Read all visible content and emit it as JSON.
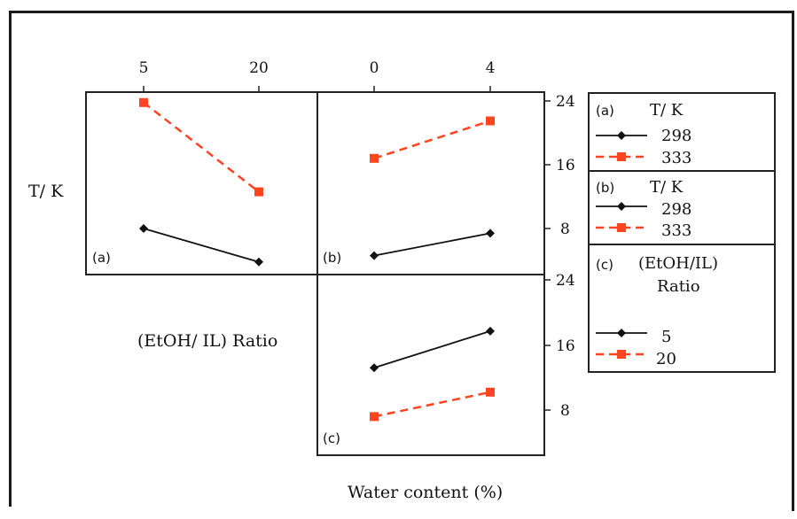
{
  "figure": {
    "top_axis_a": {
      "ticks": [
        "5",
        "20"
      ]
    },
    "top_axis_b": {
      "ticks": [
        "0",
        "4"
      ]
    },
    "y_axis_label": "T/ K",
    "middle_label": "(EtOH/ IL) Ratio",
    "x_axis_label": "Water content (%)",
    "right_ticks_upper": [
      "24",
      "16",
      "8"
    ],
    "right_ticks_lower": [
      "24",
      "16",
      "8"
    ],
    "colors": {
      "series_298": "#111111",
      "series_333": "#ff4422",
      "series_5": "#111111",
      "series_20": "#ff4422"
    }
  },
  "legend": {
    "a": {
      "tag": "(a)",
      "title": "T/ K",
      "entries": [
        "298",
        "333"
      ]
    },
    "b": {
      "tag": "(b)",
      "title": "T/ K",
      "entries": [
        "298",
        "333"
      ]
    },
    "c": {
      "tag": "(c)",
      "title_line1": "(EtOH/IL)",
      "title_line2": "Ratio",
      "entries": [
        "5",
        "20"
      ]
    }
  },
  "chart_data": [
    {
      "panel": "(a)",
      "type": "line",
      "x": [
        5,
        20
      ],
      "ylim": [
        3,
        24
      ],
      "series": [
        {
          "name": "298",
          "style": "solid",
          "values": [
            8.0,
            3.8
          ]
        },
        {
          "name": "333",
          "style": "dashed",
          "values": [
            23.8,
            12.6
          ]
        }
      ]
    },
    {
      "panel": "(b)",
      "type": "line",
      "x": [
        0,
        4
      ],
      "ylim": [
        3,
        24
      ],
      "series": [
        {
          "name": "298",
          "style": "solid",
          "values": [
            4.6,
            7.4
          ]
        },
        {
          "name": "333",
          "style": "dashed",
          "values": [
            16.8,
            21.5
          ]
        }
      ]
    },
    {
      "panel": "(c)",
      "type": "line",
      "x": [
        0,
        4
      ],
      "ylim": [
        3,
        24
      ],
      "series": [
        {
          "name": "5",
          "style": "solid",
          "values": [
            13.2,
            17.7
          ]
        },
        {
          "name": "20",
          "style": "dashed",
          "values": [
            7.2,
            10.2
          ]
        }
      ]
    }
  ]
}
